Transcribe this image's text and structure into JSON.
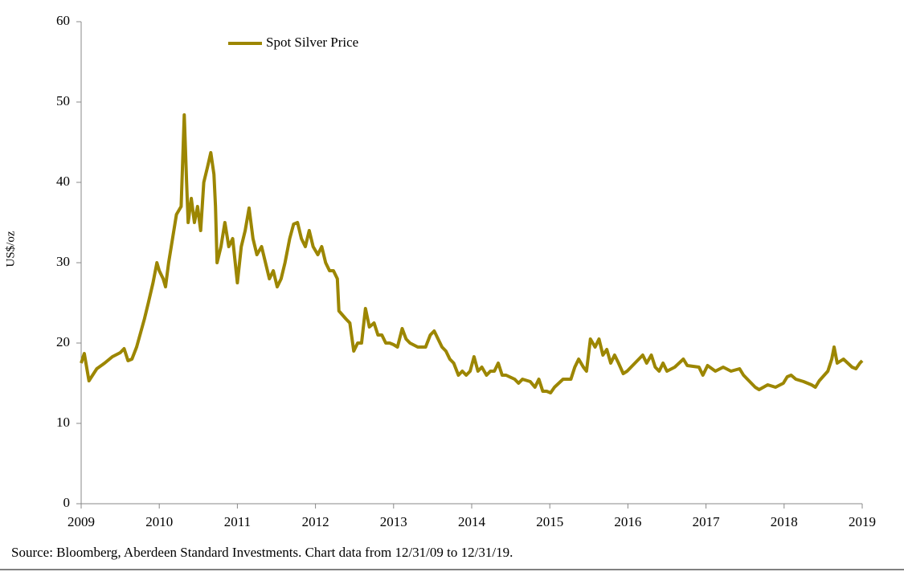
{
  "chart_data": {
    "type": "line",
    "ylabel": "US$/oz",
    "source": "Source: Bloomberg, Aberdeen Standard Investments.  Chart data from 12/31/09 to 12/31/19.",
    "xlim": [
      2009,
      2019
    ],
    "xticks": [
      2009,
      2010,
      2011,
      2012,
      2013,
      2014,
      2015,
      2016,
      2017,
      2018,
      2019
    ],
    "ylim": [
      0,
      60
    ],
    "yticks": [
      0,
      10,
      20,
      30,
      40,
      50,
      60
    ],
    "grid": false,
    "legend": "top-left",
    "series": [
      {
        "name": "Spot Silver Price",
        "color": "#9c8600",
        "x": [
          2009.0,
          2009.04,
          2009.1,
          2009.2,
          2009.3,
          2009.4,
          2009.5,
          2009.55,
          2009.6,
          2009.65,
          2009.71,
          2009.81,
          2009.86,
          2009.92,
          2009.97,
          2010.0,
          2010.05,
          2010.08,
          2010.12,
          2010.17,
          2010.22,
          2010.28,
          2010.32,
          2010.35,
          2010.37,
          2010.41,
          2010.45,
          2010.49,
          2010.53,
          2010.57,
          2010.62,
          2010.66,
          2010.7,
          2010.72,
          2010.74,
          2010.79,
          2010.84,
          2010.89,
          2010.94,
          2011.0,
          2011.05,
          2011.1,
          2011.15,
          2011.2,
          2011.25,
          2011.31,
          2011.36,
          2011.41,
          2011.46,
          2011.51,
          2011.56,
          2011.61,
          2011.67,
          2011.72,
          2011.77,
          2011.82,
          2011.87,
          2011.92,
          2011.97,
          2012.03,
          2012.08,
          2012.13,
          2012.18,
          2012.23,
          2012.28,
          2012.3,
          2012.39,
          2012.44,
          2012.49,
          2012.54,
          2012.59,
          2012.64,
          2012.69,
          2012.75,
          2012.8,
          2012.85,
          2012.9,
          2012.95,
          2013.0,
          2013.05,
          2013.11,
          2013.16,
          2013.21,
          2013.31,
          2013.41,
          2013.47,
          2013.52,
          2013.57,
          2013.62,
          2013.67,
          2013.72,
          2013.77,
          2013.83,
          2013.88,
          2013.93,
          2013.98,
          2014.03,
          2014.08,
          2014.13,
          2014.19,
          2014.24,
          2014.29,
          2014.34,
          2014.39,
          2014.44,
          2014.55,
          2014.6,
          2014.65,
          2014.75,
          2014.81,
          2014.86,
          2014.91,
          2014.96,
          2015.01,
          2015.06,
          2015.17,
          2015.27,
          2015.32,
          2015.37,
          2015.43,
          2015.47,
          2015.52,
          2015.58,
          2015.63,
          2015.68,
          2015.73,
          2015.78,
          2015.83,
          2015.88,
          2015.94,
          2015.99,
          2016.09,
          2016.19,
          2016.24,
          2016.3,
          2016.35,
          2016.4,
          2016.45,
          2016.5,
          2016.6,
          2016.71,
          2016.76,
          2016.91,
          2016.96,
          2017.02,
          2017.12,
          2017.22,
          2017.32,
          2017.43,
          2017.48,
          2017.53,
          2017.63,
          2017.68,
          2017.79,
          2017.89,
          2017.99,
          2018.04,
          2018.09,
          2018.15,
          2018.25,
          2018.35,
          2018.4,
          2018.45,
          2018.56,
          2018.61,
          2018.64,
          2018.68,
          2018.76,
          2018.87,
          2018.92,
          2018.97,
          2019.0
        ],
        "values": [
          17.5,
          18.7,
          15.3,
          16.8,
          17.5,
          18.3,
          18.8,
          19.3,
          17.8,
          18.0,
          19.5,
          23,
          25,
          27.5,
          30,
          29,
          28,
          27,
          30,
          33,
          36,
          37,
          48.4,
          40,
          35,
          38,
          35,
          37,
          34,
          40,
          42,
          43.7,
          41,
          37,
          30,
          32,
          35,
          32,
          33,
          27.5,
          32,
          34,
          36.8,
          33,
          31,
          32,
          30,
          28,
          29,
          27,
          28,
          30,
          33,
          34.8,
          35,
          33,
          32,
          34,
          32,
          31,
          32,
          30,
          29,
          29,
          28,
          24,
          23,
          22.5,
          19,
          20,
          20,
          24.3,
          22,
          22.5,
          21,
          21,
          20,
          20,
          19.8,
          19.5,
          21.8,
          20.5,
          20,
          19.5,
          19.5,
          21,
          21.5,
          20.5,
          19.5,
          19,
          18,
          17.5,
          16,
          16.5,
          16,
          16.5,
          18.3,
          16.5,
          17,
          16,
          16.5,
          16.5,
          17.5,
          16,
          16,
          15.5,
          15,
          15.5,
          15.2,
          14.5,
          15.5,
          14,
          14,
          13.8,
          14.5,
          15.5,
          15.5,
          17,
          18,
          17,
          16.5,
          20.5,
          19.5,
          20.5,
          18.5,
          19.2,
          17.5,
          18.5,
          17.5,
          16.2,
          16.5,
          17.5,
          18.5,
          17.5,
          18.5,
          17,
          16.5,
          17.5,
          16.5,
          17,
          18,
          17.2,
          17,
          16,
          17.2,
          16.5,
          17,
          16.5,
          16.8,
          16,
          15.5,
          14.5,
          14.2,
          14.8,
          14.5,
          15,
          15.8,
          16,
          15.5,
          15.2,
          14.8,
          14.5,
          15.3,
          16.5,
          18,
          19.5,
          17.5,
          18,
          17,
          16.8,
          17.5,
          17.8
        ]
      }
    ]
  }
}
